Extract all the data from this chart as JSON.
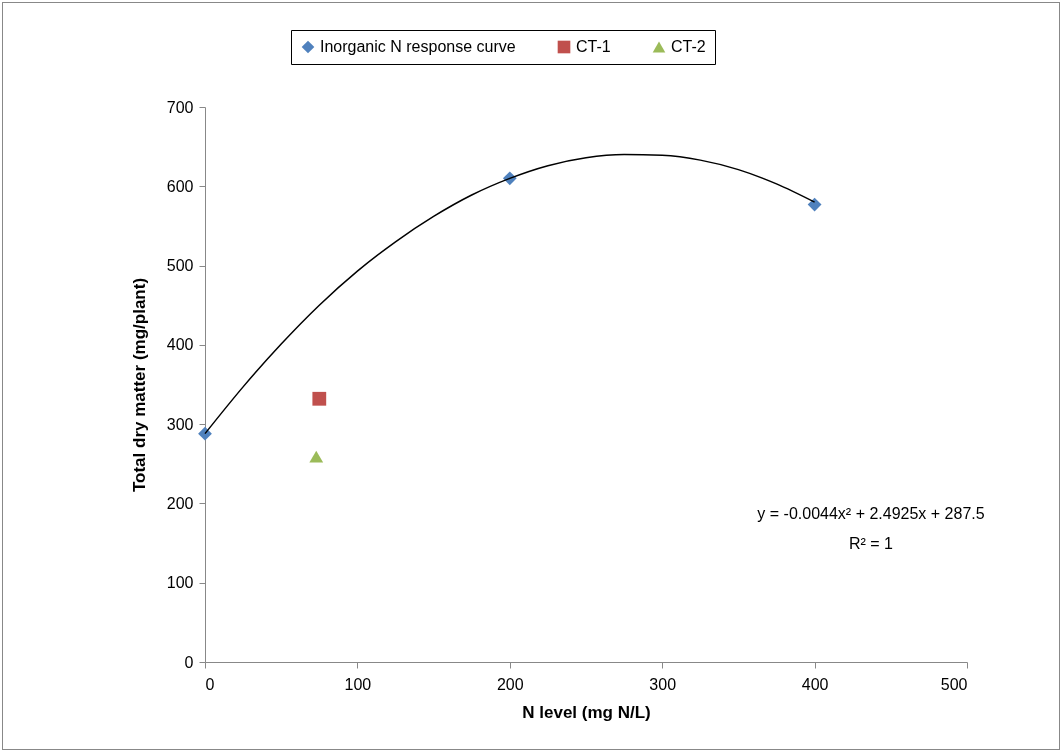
{
  "chart_data": {
    "type": "scatter",
    "xlabel": "N level (mg N/L)",
    "ylabel": "Total dry matter (mg/plant)",
    "xlim": [
      0,
      500
    ],
    "xticks": [
      0,
      100,
      200,
      300,
      400,
      500
    ],
    "ylim": [
      0,
      700
    ],
    "yticks": [
      0,
      100,
      200,
      300,
      400,
      500,
      600,
      700
    ],
    "grid": false,
    "legend": "top",
    "annotations": [
      "y = -0.0044x² + 2.4925x + 287.5",
      "R² = 1"
    ],
    "series": [
      {
        "name": "Inorganic N response curve",
        "type": "scatter",
        "marker": "diamond",
        "color": "#4f81bd",
        "x": [
          0,
          200,
          400
        ],
        "values": [
          288,
          610,
          577
        ]
      },
      {
        "name": "CT-1",
        "type": "scatter",
        "marker": "square",
        "color": "#c0504d",
        "x": [
          75
        ],
        "values": [
          332
        ]
      },
      {
        "name": "CT-2",
        "type": "scatter",
        "marker": "triangle",
        "color": "#9bbb59",
        "x": [
          73
        ],
        "values": [
          259
        ]
      },
      {
        "type": "line",
        "color": "#000000",
        "x": [
          0,
          25,
          50,
          75,
          100,
          125,
          150,
          175,
          200,
          225,
          250,
          275,
          300,
          325,
          350,
          375,
          400
        ],
        "values": [
          288,
          347,
          401,
          450,
          493,
          530,
          562,
          589,
          610,
          626,
          636,
          640,
          639,
          633,
          621,
          603,
          580
        ]
      }
    ]
  }
}
